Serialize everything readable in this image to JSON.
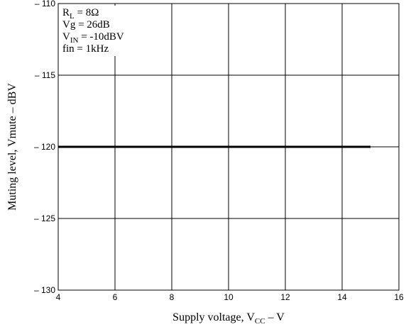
{
  "chart_data": {
    "type": "line",
    "xlabel": {
      "main": "Supply voltage, V",
      "sub": "CC",
      "unit": "  –  V"
    },
    "ylabel": "Muting level, Vmute  –  dBV",
    "xlim": [
      4,
      16
    ],
    "ylim": [
      -130,
      -110
    ],
    "x_ticks": [
      4,
      6,
      8,
      10,
      12,
      14,
      16
    ],
    "y_ticks": [
      -110,
      -115,
      -120,
      -125,
      -130
    ],
    "x_tick_labels": [
      "4",
      "6",
      "8",
      "10",
      "12",
      "14",
      "16"
    ],
    "y_tick_labels": [
      "– 110",
      "– 115",
      "– 120",
      "– 125",
      "– 130"
    ],
    "grid": true,
    "series": [
      {
        "x": [
          4,
          15
        ],
        "y": [
          -120,
          -120
        ],
        "color": "#000000"
      }
    ],
    "conditions": [
      {
        "main": "R",
        "sub": "L",
        "rest": " = 8Ω"
      },
      {
        "main": "Vg = 26dB",
        "sub": "",
        "rest": ""
      },
      {
        "main": "V",
        "sub": "IN",
        "rest": " = -10dBV"
      },
      {
        "main": "fin = 1kHz",
        "sub": "",
        "rest": ""
      }
    ]
  }
}
